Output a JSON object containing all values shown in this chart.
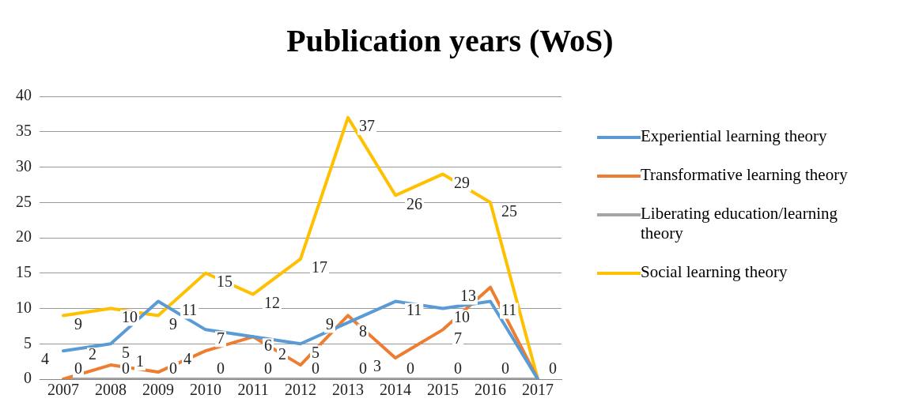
{
  "chart_data": {
    "type": "line",
    "title": "Publication years (WoS)",
    "categories": [
      "2007",
      "2008",
      "2009",
      "2010",
      "2011",
      "2012",
      "2013",
      "2014",
      "2015",
      "2016",
      "2017"
    ],
    "series": [
      {
        "name": "Experiential learning theory",
        "color": "#5b9bd5",
        "values": [
          4,
          5,
          11,
          7,
          6,
          5,
          8,
          11,
          10,
          11,
          0
        ],
        "value_labels": [
          "4",
          "5",
          "11",
          "7",
          "6",
          "5",
          "8",
          "11",
          "10",
          "11",
          "0"
        ]
      },
      {
        "name": "Transformative learning theory",
        "color": "#ed7d31",
        "values": [
          0,
          2,
          1,
          4,
          6,
          2,
          9,
          3,
          7,
          13,
          0
        ],
        "value_labels": [
          "0",
          "2",
          "1",
          "4",
          null,
          "2",
          "9",
          "3",
          "7",
          "13",
          null
        ]
      },
      {
        "name": "Liberating education/learning theory",
        "color": "#a5a5a5",
        "values": [
          0,
          0,
          0,
          0,
          0,
          0,
          0,
          0,
          0,
          0,
          0
        ],
        "value_labels": [
          null,
          "0",
          "0",
          "0",
          "0",
          "0",
          "0",
          "0",
          "0",
          "0",
          null
        ]
      },
      {
        "name": "Social learning theory",
        "color": "#ffc000",
        "values": [
          9,
          10,
          9,
          15,
          12,
          17,
          37,
          26,
          29,
          25,
          0
        ],
        "value_labels": [
          "9",
          "10",
          "9",
          "15",
          "12",
          "17",
          "37",
          "26",
          "29",
          "25",
          null
        ]
      }
    ],
    "ylim": [
      0,
      40
    ],
    "yticks": [
      0,
      5,
      10,
      15,
      20,
      25,
      30,
      35,
      40
    ],
    "grid": "y",
    "legend": "right",
    "marker": "none",
    "line_style": "solid"
  }
}
